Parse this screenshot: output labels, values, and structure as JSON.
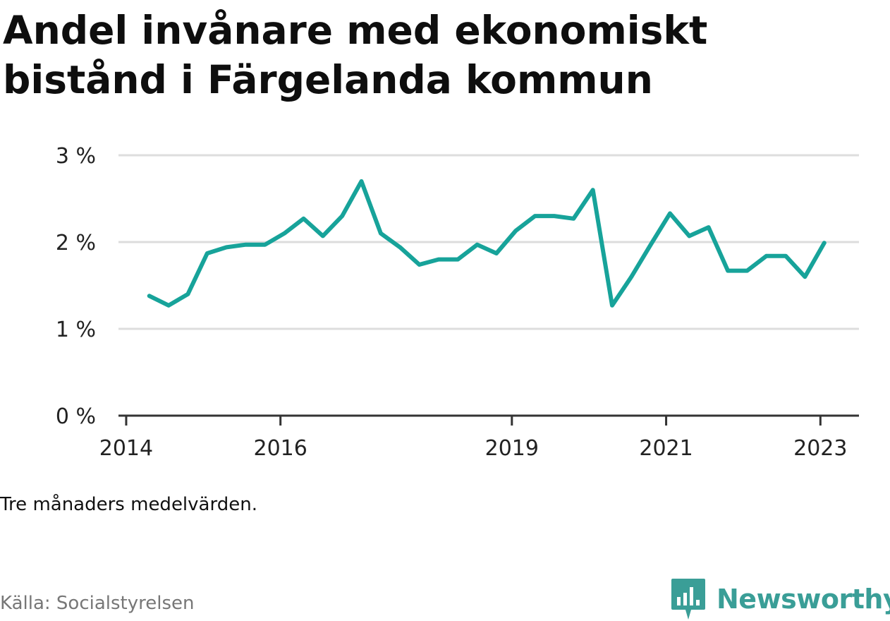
{
  "title": "Andel invånare med ekonomiskt bistånd i Färgelanda kommun",
  "note": "Tre månaders medelvärden.",
  "source": "Källa: Socialstyrelsen",
  "brand": "Newsworthy",
  "colors": {
    "line": "#17a39a",
    "grid": "#dddddd",
    "axis": "#333333",
    "brand": "#3a9e97"
  },
  "chart_data": {
    "type": "line",
    "y_tick_labels": [
      "0 %",
      "1 %",
      "2 %",
      "3 %"
    ],
    "y_ticks": [
      0,
      1,
      2,
      3
    ],
    "ylim": [
      0,
      3
    ],
    "x_tick_labels": [
      "2014",
      "2016",
      "2019",
      "2021",
      "2023"
    ],
    "x_ticks": [
      2014.0,
      2016.0,
      2019.0,
      2021.0,
      2023.0
    ],
    "xlim": [
      2013.9,
      2023.5
    ],
    "grid": true,
    "series": [
      {
        "x": [
          2014.3,
          2014.55,
          2014.8,
          2015.05,
          2015.3,
          2015.55,
          2015.8,
          2016.05,
          2016.3,
          2016.55,
          2016.8,
          2017.05,
          2017.3,
          2017.55,
          2017.8,
          2018.05,
          2018.3,
          2018.55,
          2018.8,
          2019.05,
          2019.3,
          2019.55,
          2019.8,
          2020.05,
          2020.3,
          2020.55,
          2020.8,
          2021.05,
          2021.3,
          2021.55,
          2021.8,
          2022.05,
          2022.3,
          2022.55,
          2022.8,
          2023.05
        ],
        "y": [
          1.38,
          1.27,
          1.4,
          1.87,
          1.94,
          1.97,
          1.97,
          2.1,
          2.27,
          2.07,
          2.3,
          2.7,
          2.1,
          1.94,
          1.74,
          1.8,
          1.8,
          1.97,
          1.87,
          2.13,
          2.3,
          2.3,
          2.27,
          2.6,
          1.27,
          1.6,
          1.97,
          2.33,
          2.07,
          2.17,
          1.67,
          1.67,
          1.84,
          1.84,
          1.6,
          1.99
        ]
      }
    ]
  }
}
